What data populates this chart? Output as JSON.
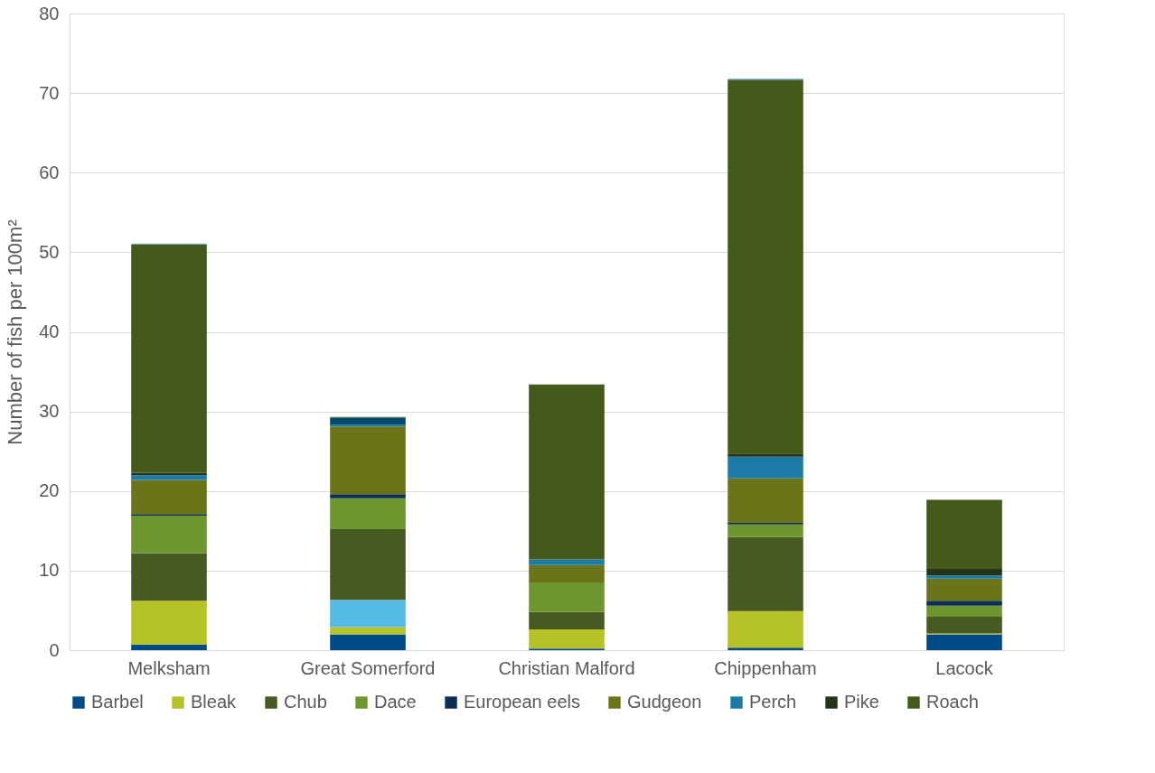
{
  "chart_data": {
    "type": "bar",
    "stacked": true,
    "ylabel": "Number of fish per 100m²",
    "categories": [
      "Melksham",
      "Great Somerford",
      "Christian Malford",
      "Chippenham",
      "Lacock"
    ],
    "ylim": [
      0,
      80
    ],
    "yticks": [
      0,
      10,
      20,
      30,
      40,
      50,
      60,
      70,
      80
    ],
    "grid": "y",
    "legend": "bottom",
    "series": [
      {
        "name": "Barbel",
        "color": "#004b87",
        "values": [
          0.7,
          2.0,
          0.2,
          0.3,
          2.0
        ]
      },
      {
        "name": "Bleak",
        "color": "#b5c327",
        "values": [
          5.5,
          0.9,
          2.4,
          4.6,
          0.1
        ]
      },
      {
        "color": "#56bbe5",
        "values": [
          0,
          3.4,
          0,
          0,
          0
        ]
      },
      {
        "name": "Chub",
        "color": "#465a22",
        "values": [
          6.0,
          8.9,
          2.2,
          9.3,
          2.1
        ]
      },
      {
        "name": "Dace",
        "color": "#6e962e",
        "values": [
          4.7,
          3.9,
          3.7,
          1.6,
          1.4
        ]
      },
      {
        "name": "European eels",
        "color": "#0d2f55",
        "values": [
          0.2,
          0.5,
          0,
          0.2,
          0.6
        ]
      },
      {
        "name": "Gudgeon",
        "color": "#6b7419",
        "values": [
          4.3,
          8.5,
          2.2,
          5.6,
          2.8
        ]
      },
      {
        "name": "Perch",
        "color": "#1b7aa6",
        "values": [
          0.6,
          0.2,
          0.7,
          2.7,
          0.4
        ]
      },
      {
        "color": "#034a6c",
        "values": [
          0,
          0.9,
          0,
          0,
          0
        ]
      },
      {
        "name": "Pike",
        "color": "#253316",
        "values": [
          0.3,
          0,
          0,
          0.4,
          0.8
        ]
      },
      {
        "name": "Roach",
        "color": "#445a1a",
        "values": [
          28.7,
          0.1,
          22.0,
          47.0,
          8.7
        ]
      },
      {
        "color": "#5b9bd5",
        "values": [
          0.1,
          0,
          0,
          0.1,
          0
        ]
      }
    ]
  }
}
